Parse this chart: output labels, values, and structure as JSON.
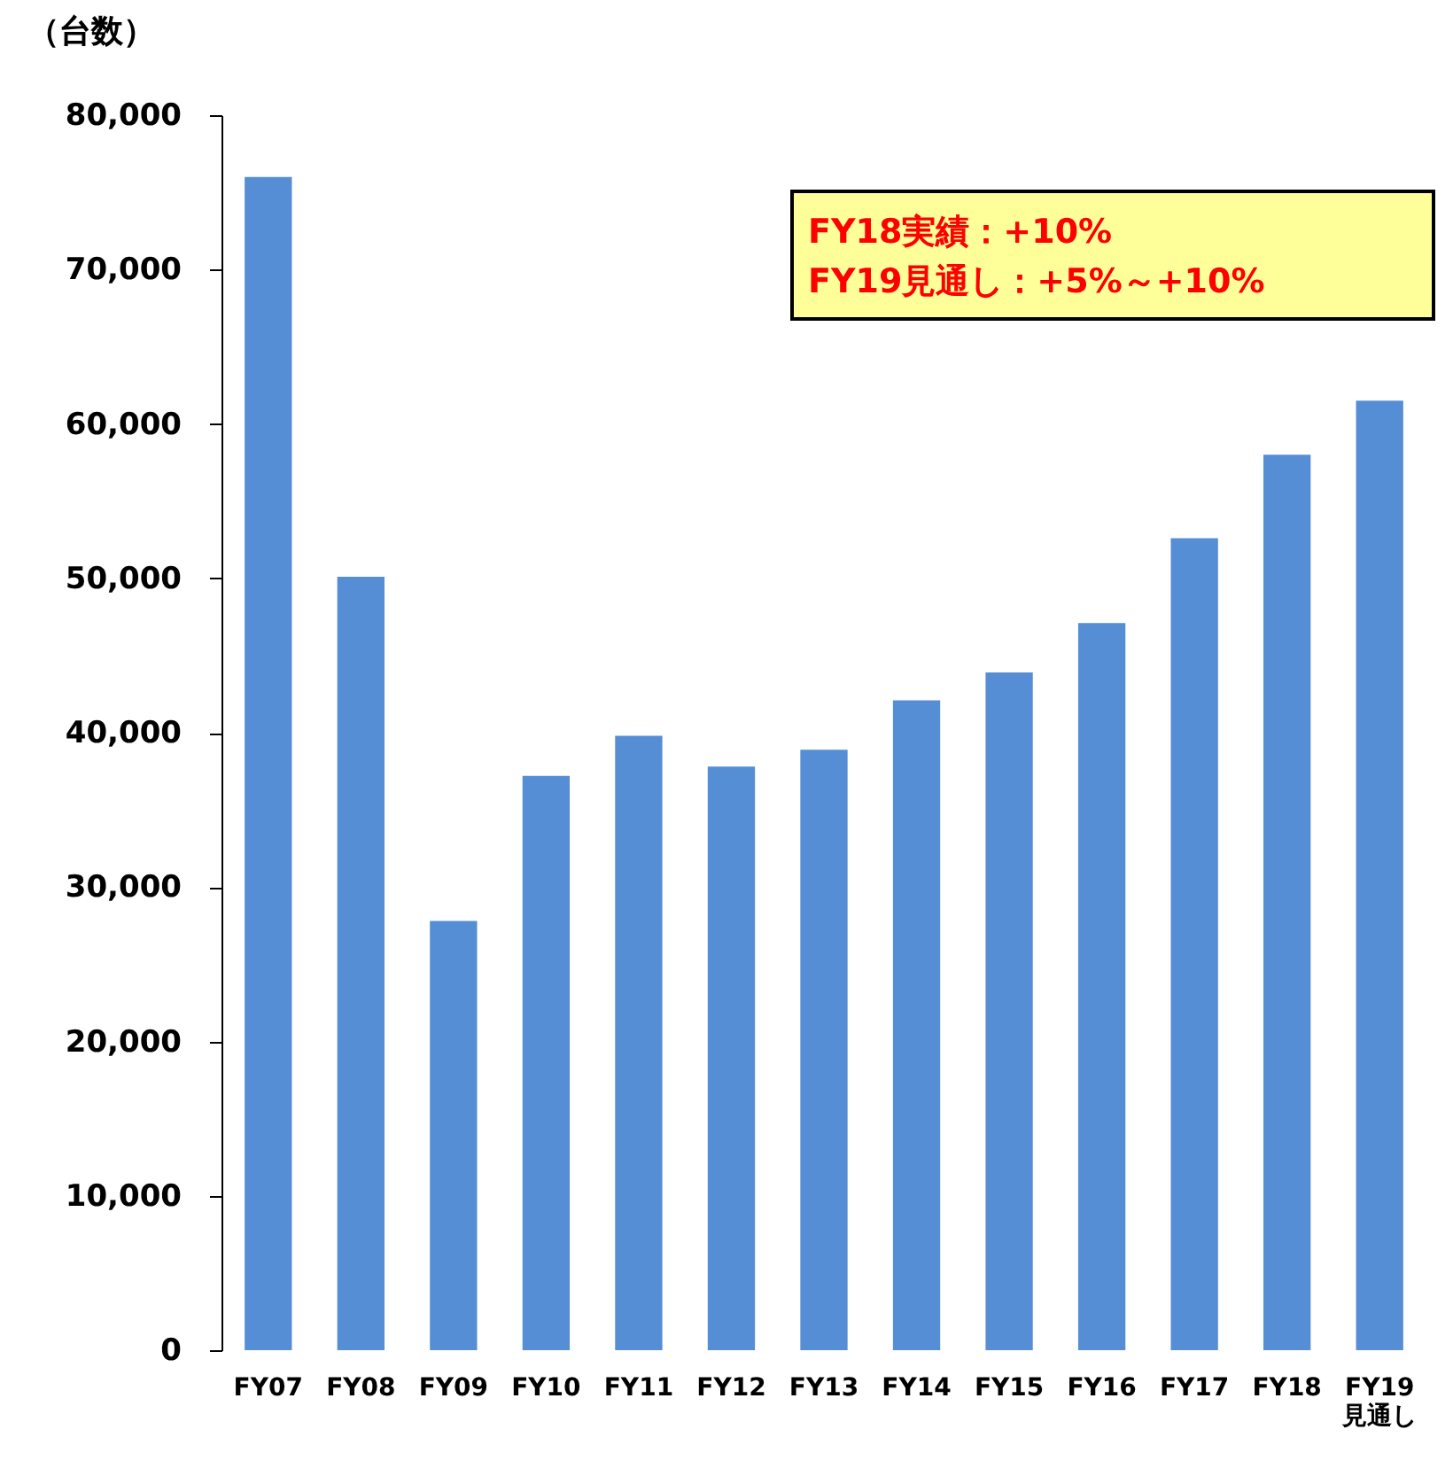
{
  "chart_data": {
    "type": "bar",
    "ylabel": "（台数）",
    "categories": [
      "FY07",
      "FY08",
      "FY09",
      "FY10",
      "FY11",
      "FY12",
      "FY13",
      "FY14",
      "FY15",
      "FY16",
      "FY17",
      "FY18",
      "FY19\n見通し"
    ],
    "values": [
      76000,
      50100,
      27800,
      37200,
      39800,
      37800,
      38900,
      42100,
      43900,
      47100,
      52600,
      58000,
      61500
    ],
    "color": "#558ed5",
    "ylim": [
      0,
      80000
    ],
    "yticks": [
      {
        "value": 0,
        "label": "0"
      },
      {
        "value": 10000,
        "label": "10,000"
      },
      {
        "value": 20000,
        "label": "20,000"
      },
      {
        "value": 30000,
        "label": "30,000"
      },
      {
        "value": 40000,
        "label": "40,000"
      },
      {
        "value": 50000,
        "label": "50,000"
      },
      {
        "value": 60000,
        "label": "60,000"
      },
      {
        "value": 70000,
        "label": "70,000"
      },
      {
        "value": 80000,
        "label": "80,000"
      }
    ],
    "grid": false,
    "annotations": [
      "FY18実績：+10%",
      "FY19見通し：+5%～+10%"
    ]
  }
}
